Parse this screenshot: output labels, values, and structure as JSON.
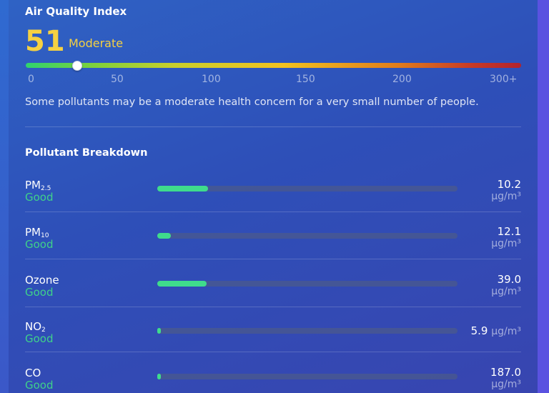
{
  "aqi": {
    "title": "Air Quality Index",
    "value": "51",
    "category": "Moderate",
    "scale_max": 300,
    "ticks": [
      "0",
      "50",
      "100",
      "150",
      "200",
      "300+"
    ],
    "description": "Some pollutants may be a moderate health concern for a very small number of people."
  },
  "pollutants": {
    "title": "Pollutant Breakdown",
    "items": [
      {
        "name": "PM",
        "sub": "2.5",
        "status": "Good",
        "value": "10.2",
        "unit": "µg/m³",
        "level": 0.17
      },
      {
        "name": "PM",
        "sub": "10",
        "status": "Good",
        "value": "12.1",
        "unit": "µg/m³",
        "level": 0.045
      },
      {
        "name": "Ozone",
        "sub": "",
        "status": "Good",
        "value": "39.0",
        "unit": "µg/m³",
        "level": 0.165
      },
      {
        "name": "NO",
        "sub": "2",
        "status": "Good",
        "value": "5.9",
        "unit": "µg/m³",
        "level": 0.012
      },
      {
        "name": "CO",
        "sub": "",
        "status": "Good",
        "value": "187.0",
        "unit": "µg/m³",
        "level": 0.012
      }
    ]
  },
  "colors": {
    "aqi_accent": "#f5d142",
    "good": "#3fd18a",
    "scale_start": "#2fd36d",
    "scale_end": "#b2232c"
  }
}
